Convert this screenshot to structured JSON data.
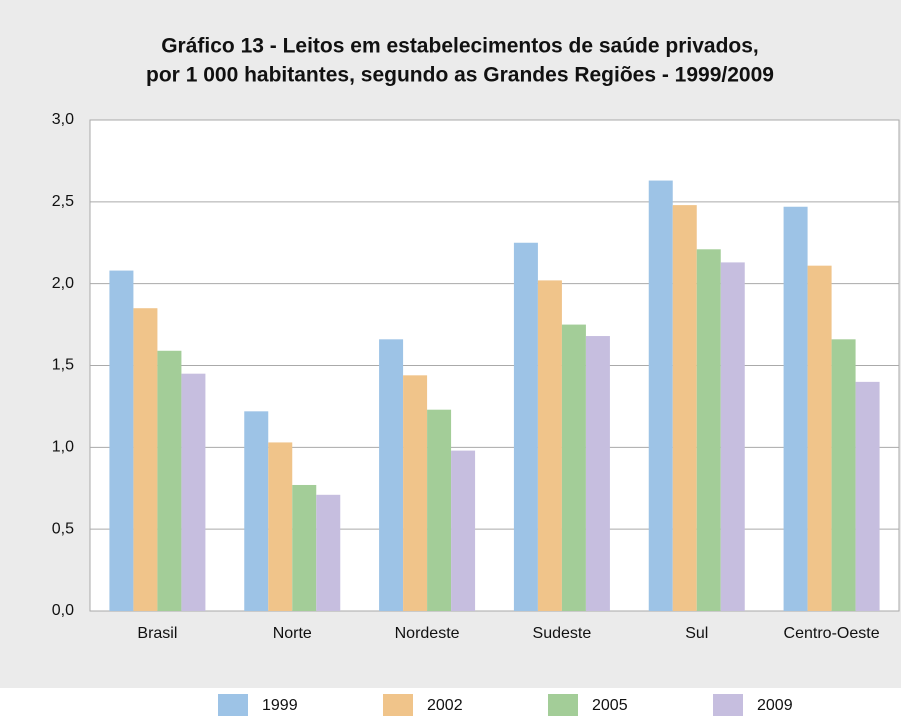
{
  "chart_data": {
    "type": "bar",
    "title": [
      "Gráfico 13 - Leitos em estabelecimentos de saúde privados,",
      "por 1 000 habitantes, segundo as Grandes Regiões - 1999/2009"
    ],
    "categories": [
      "Brasil",
      "Norte",
      "Nordeste",
      "Sudeste",
      "Sul",
      "Centro-Oeste"
    ],
    "series": [
      {
        "name": "1999",
        "color": "#9dc3e6",
        "values": [
          2.08,
          1.22,
          1.66,
          2.25,
          2.63,
          2.47
        ]
      },
      {
        "name": "2002",
        "color": "#f0c48a",
        "values": [
          1.85,
          1.03,
          1.44,
          2.02,
          2.48,
          2.11
        ]
      },
      {
        "name": "2005",
        "color": "#a3cd98",
        "values": [
          1.59,
          0.77,
          1.23,
          1.75,
          2.21,
          1.66
        ]
      },
      {
        "name": "2009",
        "color": "#c6bedf",
        "values": [
          1.45,
          0.71,
          0.98,
          1.68,
          2.13,
          1.4
        ]
      }
    ],
    "ylim": [
      0,
      3
    ],
    "yticks": [
      {
        "value": 0,
        "label": "0,0"
      },
      {
        "value": 0.5,
        "label": "0,5"
      },
      {
        "value": 1,
        "label": "1,0"
      },
      {
        "value": 1.5,
        "label": "1,5"
      },
      {
        "value": 2,
        "label": "2,0"
      },
      {
        "value": 2.5,
        "label": "2,5"
      },
      {
        "value": 3,
        "label": "3,0"
      }
    ],
    "grid": true,
    "legend": "bottom"
  }
}
